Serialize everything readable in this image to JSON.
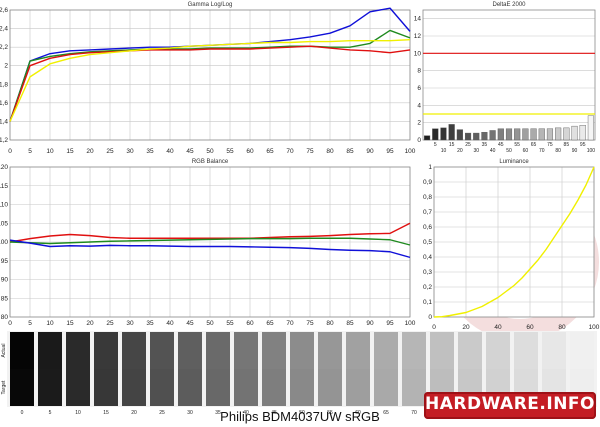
{
  "caption": "Philips BDM4037UW sRGB",
  "logo_text": "HARDWARE.INFO",
  "chart_data": [
    {
      "type": "line",
      "title": "Gamma Log/Log",
      "x": [
        0,
        5,
        10,
        15,
        20,
        25,
        30,
        35,
        40,
        45,
        50,
        55,
        60,
        65,
        70,
        75,
        80,
        85,
        90,
        95,
        100
      ],
      "xlim": [
        0,
        100
      ],
      "ylim": [
        1.2,
        2.6
      ],
      "yticks": [
        "1,2",
        "1,4",
        "1,6",
        "1,8",
        "2",
        "2,2",
        "2,4",
        "2,6"
      ],
      "yticks_values": [
        1.2,
        1.4,
        1.6,
        1.8,
        2.0,
        2.2,
        2.4,
        2.6
      ],
      "xticks": [
        0,
        5,
        10,
        15,
        20,
        25,
        30,
        35,
        40,
        45,
        50,
        55,
        60,
        65,
        70,
        75,
        80,
        85,
        90,
        95,
        100
      ],
      "grid": true,
      "series": [
        {
          "color": "#1010d8",
          "values": [
            1.4,
            2.05,
            2.13,
            2.16,
            2.17,
            2.18,
            2.19,
            2.2,
            2.2,
            2.21,
            2.22,
            2.23,
            2.24,
            2.26,
            2.28,
            2.31,
            2.35,
            2.43,
            2.58,
            2.62,
            2.37
          ]
        },
        {
          "color": "#1f8a1f",
          "values": [
            1.4,
            2.05,
            2.1,
            2.13,
            2.15,
            2.16,
            2.17,
            2.18,
            2.18,
            2.18,
            2.19,
            2.19,
            2.19,
            2.2,
            2.21,
            2.21,
            2.2,
            2.2,
            2.24,
            2.38,
            2.3
          ]
        },
        {
          "color": "#e01010",
          "values": [
            1.4,
            2.0,
            2.08,
            2.12,
            2.14,
            2.15,
            2.16,
            2.17,
            2.17,
            2.17,
            2.18,
            2.18,
            2.18,
            2.19,
            2.2,
            2.21,
            2.19,
            2.17,
            2.16,
            2.14,
            2.17
          ]
        },
        {
          "color": "#f0f000",
          "values": [
            1.4,
            1.88,
            2.02,
            2.08,
            2.12,
            2.14,
            2.16,
            2.18,
            2.19,
            2.21,
            2.22,
            2.23,
            2.24,
            2.25,
            2.25,
            2.26,
            2.26,
            2.27,
            2.27,
            2.27,
            2.28
          ]
        }
      ]
    },
    {
      "type": "bar",
      "title": "DeltaE 2000",
      "x": [
        1,
        2,
        3,
        4,
        5,
        6,
        7,
        8,
        9,
        10,
        11,
        12,
        13,
        14,
        15,
        16,
        17,
        18,
        19,
        20,
        21
      ],
      "values": [
        0.5,
        1.3,
        1.4,
        1.8,
        1.2,
        0.8,
        0.8,
        0.9,
        1.1,
        1.3,
        1.3,
        1.3,
        1.3,
        1.3,
        1.3,
        1.3,
        1.4,
        1.4,
        1.6,
        1.7,
        2.8
      ],
      "ylim": [
        0,
        15
      ],
      "yticks": [
        "0",
        "2",
        "4",
        "6",
        "8",
        "10",
        "12",
        "14"
      ],
      "yticks_values": [
        0,
        2,
        4,
        6,
        8,
        10,
        12,
        14
      ],
      "xticks": [
        "5",
        "10",
        "15",
        "20",
        "25",
        "30",
        "35",
        "40",
        "45",
        "50",
        "55",
        "60",
        "65",
        "70",
        "75",
        "80",
        "85",
        "90",
        "95",
        "100"
      ],
      "ref_lines": [
        {
          "value": 10,
          "color": "#e01010"
        },
        {
          "value": 3,
          "color": "#f0f000"
        }
      ]
    },
    {
      "type": "line",
      "title": "RGB Balance",
      "x": [
        0,
        5,
        10,
        15,
        20,
        25,
        30,
        35,
        40,
        45,
        50,
        55,
        60,
        65,
        70,
        75,
        80,
        85,
        90,
        95,
        100
      ],
      "xlim": [
        0,
        100
      ],
      "ylim": [
        80,
        120
      ],
      "yticks": [
        "80",
        "85",
        "90",
        "95",
        "100",
        "105",
        "110",
        "115",
        "120"
      ],
      "yticks_values": [
        80,
        85,
        90,
        95,
        100,
        105,
        110,
        115,
        120
      ],
      "xticks": [
        0,
        5,
        10,
        15,
        20,
        25,
        30,
        35,
        40,
        45,
        50,
        55,
        60,
        65,
        70,
        75,
        80,
        85,
        90,
        95,
        100
      ],
      "grid": true,
      "series": [
        {
          "color": "#e01010",
          "values": [
            100,
            100.9,
            101.6,
            102,
            101.7,
            101.2,
            101,
            101,
            101,
            101,
            101,
            101,
            101,
            101.2,
            101.4,
            101.5,
            101.7,
            102,
            102.2,
            102.3,
            105
          ]
        },
        {
          "color": "#1f8a1f",
          "values": [
            100,
            99.8,
            99.6,
            99.8,
            100,
            100.2,
            100.3,
            100.4,
            100.5,
            100.6,
            100.7,
            100.8,
            100.9,
            100.9,
            100.9,
            101,
            101,
            101,
            100.8,
            100.6,
            99.2
          ]
        },
        {
          "color": "#1010d8",
          "values": [
            100.5,
            99.7,
            98.8,
            99,
            98.9,
            99.1,
            99,
            99,
            98.9,
            98.8,
            98.8,
            98.8,
            98.7,
            98.6,
            98.5,
            98.3,
            98,
            97.8,
            97.7,
            97.4,
            95.9
          ]
        }
      ]
    },
    {
      "type": "line",
      "title": "Luminance",
      "x": [
        0,
        5,
        10,
        15,
        20,
        25,
        30,
        35,
        40,
        45,
        50,
        55,
        60,
        65,
        70,
        75,
        80,
        85,
        90,
        95,
        100
      ],
      "xlim": [
        0,
        100
      ],
      "ylim": [
        0,
        1
      ],
      "yticks": [
        "0",
        "0,1",
        "0,2",
        "0,3",
        "0,4",
        "0,5",
        "0,6",
        "0,7",
        "0,8",
        "0,9",
        "1"
      ],
      "yticks_values": [
        0,
        0.1,
        0.2,
        0.3,
        0.4,
        0.5,
        0.6,
        0.7,
        0.8,
        0.9,
        1
      ],
      "xticks": [
        0,
        20,
        40,
        60,
        80,
        100
      ],
      "grid": true,
      "series": [
        {
          "color": "#f0f000",
          "values": [
            0,
            0.002,
            0.01,
            0.02,
            0.03,
            0.05,
            0.07,
            0.1,
            0.13,
            0.17,
            0.21,
            0.26,
            0.32,
            0.38,
            0.45,
            0.53,
            0.61,
            0.69,
            0.78,
            0.88,
            1.0
          ]
        }
      ]
    }
  ],
  "grayscale": {
    "row_labels": [
      "Actual",
      "Target"
    ],
    "labels": [
      "0",
      "5",
      "10",
      "15",
      "20",
      "25",
      "30",
      "35",
      "40",
      "45",
      "50",
      "55",
      "60",
      "65",
      "70",
      "75",
      "80",
      "85",
      "90",
      "95",
      "100"
    ]
  }
}
